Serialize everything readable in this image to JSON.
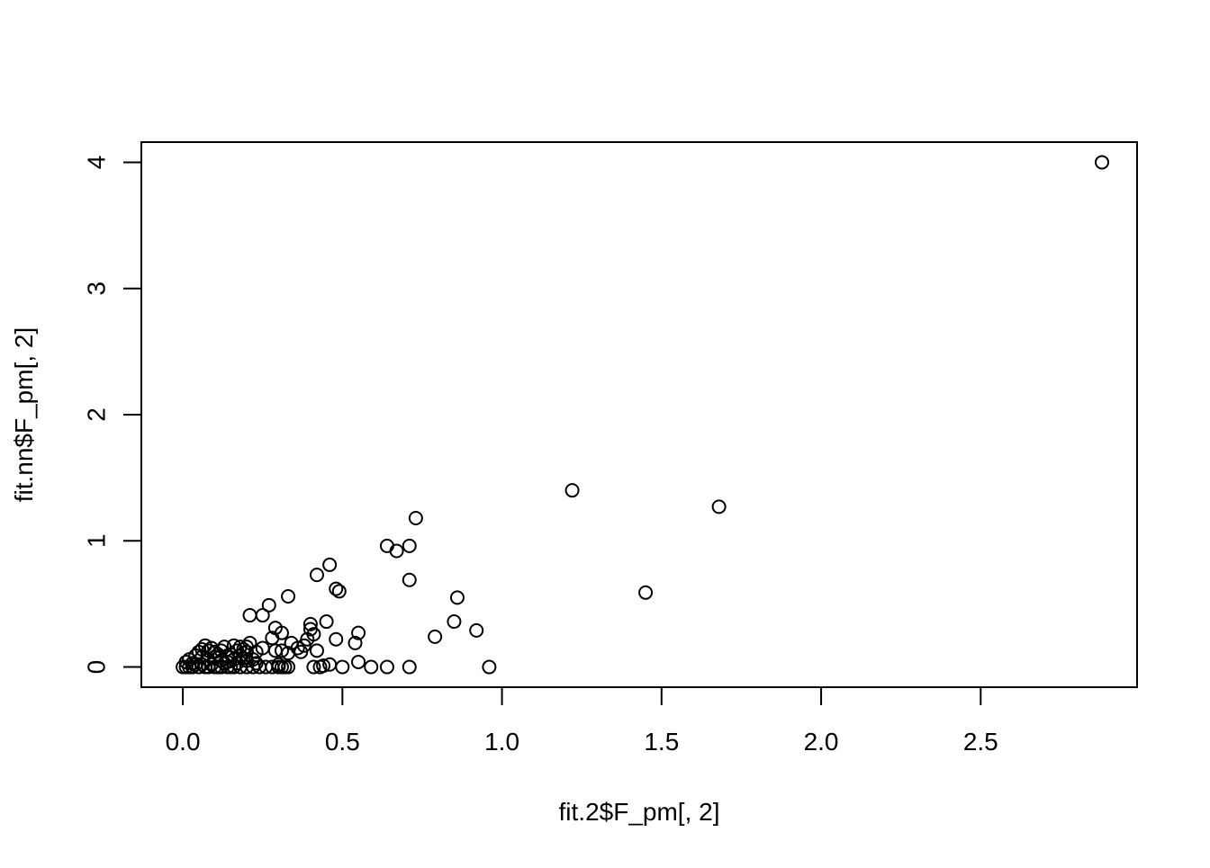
{
  "chart_data": {
    "type": "scatter",
    "title": "",
    "xlabel": "fit.2$F_pm[, 2]",
    "ylabel": "fit.nn$F_pm[, 2]",
    "xlim": [
      -0.13,
      2.99
    ],
    "ylim": [
      -0.16,
      4.16
    ],
    "x_ticks": [
      0.0,
      0.5,
      1.0,
      1.5,
      2.0,
      2.5
    ],
    "x_tick_labels": [
      "0.0",
      "0.5",
      "1.0",
      "1.5",
      "2.0",
      "2.5"
    ],
    "y_ticks": [
      0,
      1,
      2,
      3,
      4
    ],
    "y_tick_labels": [
      "0",
      "1",
      "2",
      "3",
      "4"
    ],
    "grid": false,
    "legend": "none",
    "marker": "open-circle",
    "colors": {
      "marker": "#000000",
      "axes": "#000000",
      "background": "#ffffff"
    },
    "points": [
      [
        2.88,
        4.0
      ],
      [
        1.22,
        1.4
      ],
      [
        1.68,
        1.27
      ],
      [
        1.45,
        0.59
      ],
      [
        0.73,
        1.18
      ],
      [
        0.64,
        0.96
      ],
      [
        0.67,
        0.92
      ],
      [
        0.71,
        0.96
      ],
      [
        0.71,
        0.69
      ],
      [
        0.86,
        0.55
      ],
      [
        0.85,
        0.36
      ],
      [
        0.92,
        0.29
      ],
      [
        0.79,
        0.24
      ],
      [
        0.96,
        0.0
      ],
      [
        0.71,
        0.0
      ],
      [
        0.64,
        0.0
      ],
      [
        0.59,
        0.0
      ],
      [
        0.55,
        0.04
      ],
      [
        0.55,
        0.27
      ],
      [
        0.54,
        0.19
      ],
      [
        0.5,
        0.0
      ],
      [
        0.49,
        0.6
      ],
      [
        0.48,
        0.62
      ],
      [
        0.48,
        0.22
      ],
      [
        0.46,
        0.81
      ],
      [
        0.46,
        0.02
      ],
      [
        0.45,
        0.36
      ],
      [
        0.44,
        0.01
      ],
      [
        0.43,
        0.0
      ],
      [
        0.42,
        0.73
      ],
      [
        0.42,
        0.13
      ],
      [
        0.41,
        0.26
      ],
      [
        0.41,
        0.0
      ],
      [
        0.4,
        0.34
      ],
      [
        0.4,
        0.3
      ],
      [
        0.39,
        0.22
      ],
      [
        0.38,
        0.17
      ],
      [
        0.37,
        0.12
      ],
      [
        0.36,
        0.15
      ],
      [
        0.34,
        0.19
      ],
      [
        0.33,
        0.56
      ],
      [
        0.33,
        0.11
      ],
      [
        0.32,
        0.0
      ],
      [
        0.31,
        0.27
      ],
      [
        0.31,
        0.13
      ],
      [
        0.3,
        0.02
      ],
      [
        0.29,
        0.31
      ],
      [
        0.29,
        0.13
      ],
      [
        0.28,
        0.23
      ],
      [
        0.28,
        0.0
      ],
      [
        0.27,
        0.49
      ],
      [
        0.25,
        0.41
      ],
      [
        0.25,
        0.15
      ],
      [
        0.24,
        0.0
      ],
      [
        0.23,
        0.12
      ],
      [
        0.22,
        0.06
      ],
      [
        0.21,
        0.41
      ],
      [
        0.21,
        0.19
      ],
      [
        0.2,
        0.12
      ],
      [
        0.2,
        0.0
      ],
      [
        0.19,
        0.07
      ],
      [
        0.18,
        0.16
      ],
      [
        0.17,
        0.03
      ],
      [
        0.16,
        0.17
      ],
      [
        0.15,
        0.1
      ],
      [
        0.14,
        0.0
      ],
      [
        0.13,
        0.16
      ],
      [
        0.12,
        0.05
      ],
      [
        0.11,
        0.1
      ],
      [
        0.1,
        0.0
      ],
      [
        0.09,
        0.15
      ],
      [
        0.08,
        0.06
      ],
      [
        0.07,
        0.17
      ],
      [
        0.06,
        0.02
      ],
      [
        0.05,
        0.12
      ],
      [
        0.04,
        0.09
      ],
      [
        0.03,
        0.03
      ],
      [
        0.02,
        0.0
      ],
      [
        0.01,
        0.04
      ],
      [
        0.0,
        0.0
      ],
      [
        0.01,
        0.0
      ],
      [
        0.03,
        0.0
      ],
      [
        0.05,
        0.0
      ],
      [
        0.06,
        0.08
      ],
      [
        0.07,
        0.0
      ],
      [
        0.08,
        0.13
      ],
      [
        0.09,
        0.02
      ],
      [
        0.1,
        0.08
      ],
      [
        0.11,
        0.0
      ],
      [
        0.12,
        0.13
      ],
      [
        0.13,
        0.03
      ],
      [
        0.14,
        0.09
      ],
      [
        0.15,
        0.0
      ],
      [
        0.16,
        0.06
      ],
      [
        0.17,
        0.13
      ],
      [
        0.18,
        0.0
      ],
      [
        0.19,
        0.14
      ],
      [
        0.2,
        0.05
      ],
      [
        0.22,
        0.0
      ],
      [
        0.26,
        0.0
      ],
      [
        0.3,
        0.0
      ],
      [
        0.33,
        0.0
      ],
      [
        0.02,
        0.06
      ],
      [
        0.04,
        0.02
      ],
      [
        0.06,
        0.14
      ],
      [
        0.08,
        0.0
      ],
      [
        0.1,
        0.12
      ],
      [
        0.12,
        0.0
      ],
      [
        0.14,
        0.04
      ],
      [
        0.16,
        0.0
      ],
      [
        0.18,
        0.09
      ],
      [
        0.2,
        0.16
      ],
      [
        0.23,
        0.03
      ],
      [
        0.31,
        0.0
      ]
    ]
  }
}
